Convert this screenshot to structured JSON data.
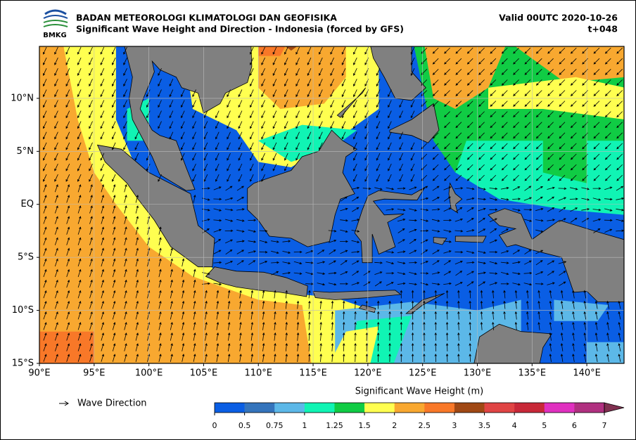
{
  "header": {
    "title": "BADAN METEOROLOGI KLIMATOLOGI DAN GEOFISIKA",
    "subtitle": "Significant Wave Height and Direction - Indonesia (forced by GFS)",
    "valid": "Valid 00UTC 2020-10-26",
    "step": "t+048",
    "logo_text": "BMKG"
  },
  "map": {
    "xlim": [
      90,
      143.4
    ],
    "ylim": [
      -15,
      14.9
    ],
    "grid": true,
    "xticks": [
      {
        "value": 90,
        "label": "90°E"
      },
      {
        "value": 95,
        "label": "95°E"
      },
      {
        "value": 100,
        "label": "100°E"
      },
      {
        "value": 105,
        "label": "105°E"
      },
      {
        "value": 110,
        "label": "110°E"
      },
      {
        "value": 115,
        "label": "115°E"
      },
      {
        "value": 120,
        "label": "120°E"
      },
      {
        "value": 125,
        "label": "125°E"
      },
      {
        "value": 130,
        "label": "130°E"
      },
      {
        "value": 135,
        "label": "135°E"
      },
      {
        "value": 140,
        "label": "140°E"
      }
    ],
    "yticks": [
      {
        "value": 10,
        "label": "10°N"
      },
      {
        "value": 5,
        "label": "5°N"
      },
      {
        "value": 0,
        "label": "EQ"
      },
      {
        "value": -5,
        "label": "5°S"
      },
      {
        "value": -10,
        "label": "10°S"
      },
      {
        "value": -15,
        "label": "15°S"
      }
    ]
  },
  "legend": {
    "label": "Wave Direction"
  },
  "colorbar": {
    "title": "Significant Wave Height (m)",
    "ticks": [
      0,
      0.5,
      0.75,
      1,
      1.25,
      1.5,
      2,
      2.5,
      3,
      3.5,
      4,
      5,
      6,
      7
    ],
    "colors": [
      "#0a5ee4",
      "#3474bc",
      "#5cb8e8",
      "#10f4b4",
      "#10cc44",
      "#ffff50",
      "#f8a830",
      "#f87828",
      "#a04814",
      "#e04444",
      "#c82838",
      "#e030c0",
      "#b03080",
      "#803050"
    ]
  }
}
